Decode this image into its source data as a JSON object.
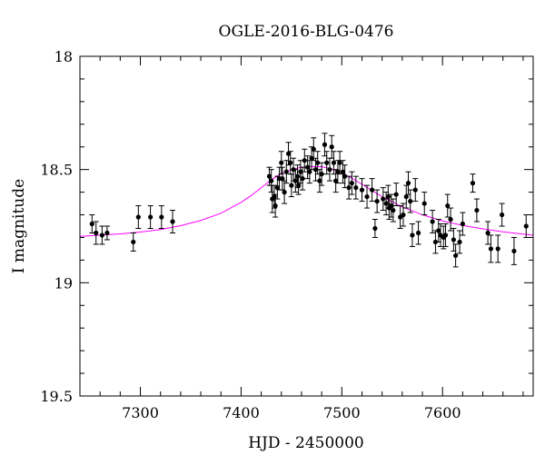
{
  "chart_data": {
    "type": "scatter",
    "title": "OGLE-2016-BLG-0476",
    "xlabel": "HJD - 2450000",
    "ylabel": "I magnitude",
    "xlim": [
      7240,
      7690
    ],
    "ylim": [
      19.5,
      18.0
    ],
    "y_inverted": true,
    "grid": false,
    "x_ticks": [
      7300,
      7400,
      7500,
      7600
    ],
    "x_tick_labels": [
      "7300",
      "7400",
      "7500",
      "7600"
    ],
    "y_ticks": [
      18.0,
      18.5,
      19.0,
      19.5
    ],
    "y_tick_labels": [
      "18",
      "18.5",
      "19",
      "19.5"
    ],
    "colors": {
      "points": "#000000",
      "model": "#ff00ff",
      "axes": "#000000"
    },
    "series": [
      {
        "kind": "points_with_errorbars",
        "points": [
          [
            7252,
            18.74,
            0.04
          ],
          [
            7256,
            18.78,
            0.05
          ],
          [
            7262,
            18.79,
            0.04
          ],
          [
            7267,
            18.78,
            0.03
          ],
          [
            7293,
            18.82,
            0.04
          ],
          [
            7298,
            18.71,
            0.05
          ],
          [
            7310,
            18.71,
            0.05
          ],
          [
            7321,
            18.71,
            0.05
          ],
          [
            7332,
            18.73,
            0.05
          ],
          [
            7428,
            18.53,
            0.04
          ],
          [
            7430,
            18.55,
            0.05
          ],
          [
            7431,
            18.63,
            0.06
          ],
          [
            7433,
            18.62,
            0.05
          ],
          [
            7434,
            18.66,
            0.05
          ],
          [
            7436,
            18.58,
            0.05
          ],
          [
            7438,
            18.54,
            0.05
          ],
          [
            7440,
            18.47,
            0.05
          ],
          [
            7441,
            18.54,
            0.05
          ],
          [
            7443,
            18.6,
            0.05
          ],
          [
            7445,
            18.51,
            0.05
          ],
          [
            7447,
            18.43,
            0.05
          ],
          [
            7449,
            18.47,
            0.05
          ],
          [
            7450,
            18.57,
            0.05
          ],
          [
            7452,
            18.5,
            0.05
          ],
          [
            7454,
            18.55,
            0.05
          ],
          [
            7456,
            18.53,
            0.05
          ],
          [
            7457,
            18.57,
            0.04
          ],
          [
            7459,
            18.51,
            0.05
          ],
          [
            7461,
            18.54,
            0.05
          ],
          [
            7463,
            18.46,
            0.05
          ],
          [
            7466,
            18.49,
            0.05
          ],
          [
            7468,
            18.51,
            0.05
          ],
          [
            7470,
            18.45,
            0.05
          ],
          [
            7472,
            18.41,
            0.05
          ],
          [
            7474,
            18.5,
            0.05
          ],
          [
            7476,
            18.47,
            0.05
          ],
          [
            7478,
            18.55,
            0.05
          ],
          [
            7480,
            18.52,
            0.05
          ],
          [
            7483,
            18.39,
            0.05
          ],
          [
            7485,
            18.47,
            0.05
          ],
          [
            7488,
            18.5,
            0.05
          ],
          [
            7490,
            18.4,
            0.05
          ],
          [
            7492,
            18.47,
            0.05
          ],
          [
            7494,
            18.55,
            0.05
          ],
          [
            7496,
            18.51,
            0.05
          ],
          [
            7498,
            18.47,
            0.05
          ],
          [
            7501,
            18.51,
            0.05
          ],
          [
            7503,
            18.53,
            0.05
          ],
          [
            7507,
            18.58,
            0.05
          ],
          [
            7510,
            18.56,
            0.05
          ],
          [
            7514,
            18.58,
            0.05
          ],
          [
            7520,
            18.59,
            0.05
          ],
          [
            7525,
            18.62,
            0.05
          ],
          [
            7530,
            18.59,
            0.05
          ],
          [
            7533,
            18.76,
            0.04
          ],
          [
            7535,
            18.64,
            0.05
          ],
          [
            7541,
            18.63,
            0.05
          ],
          [
            7544,
            18.65,
            0.05
          ],
          [
            7546,
            18.62,
            0.05
          ],
          [
            7547,
            18.67,
            0.05
          ],
          [
            7549,
            18.66,
            0.05
          ],
          [
            7551,
            18.68,
            0.05
          ],
          [
            7554,
            18.61,
            0.05
          ],
          [
            7558,
            18.71,
            0.05
          ],
          [
            7561,
            18.7,
            0.05
          ],
          [
            7564,
            18.62,
            0.05
          ],
          [
            7566,
            18.56,
            0.05
          ],
          [
            7568,
            18.64,
            0.05
          ],
          [
            7570,
            18.79,
            0.05
          ],
          [
            7573,
            18.59,
            0.05
          ],
          [
            7576,
            18.78,
            0.05
          ],
          [
            7582,
            18.65,
            0.05
          ],
          [
            7590,
            18.73,
            0.05
          ],
          [
            7593,
            18.82,
            0.05
          ],
          [
            7596,
            18.77,
            0.05
          ],
          [
            7598,
            18.79,
            0.05
          ],
          [
            7601,
            18.8,
            0.05
          ],
          [
            7603,
            18.79,
            0.05
          ],
          [
            7605,
            18.66,
            0.05
          ],
          [
            7608,
            18.72,
            0.05
          ],
          [
            7611,
            18.81,
            0.05
          ],
          [
            7613,
            18.88,
            0.05
          ],
          [
            7617,
            18.82,
            0.05
          ],
          [
            7620,
            18.74,
            0.05
          ],
          [
            7630,
            18.56,
            0.04
          ],
          [
            7634,
            18.68,
            0.05
          ],
          [
            7645,
            18.78,
            0.05
          ],
          [
            7648,
            18.85,
            0.06
          ],
          [
            7655,
            18.85,
            0.06
          ],
          [
            7659,
            18.7,
            0.05
          ],
          [
            7671,
            18.86,
            0.06
          ],
          [
            7683,
            18.75,
            0.05
          ]
        ]
      },
      {
        "kind": "model_curve",
        "x": [
          7240,
          7260,
          7280,
          7300,
          7320,
          7340,
          7360,
          7380,
          7400,
          7410,
          7420,
          7430,
          7440,
          7450,
          7460,
          7470,
          7480,
          7490,
          7500,
          7510,
          7520,
          7530,
          7540,
          7560,
          7580,
          7600,
          7620,
          7640,
          7660,
          7680,
          7690
        ],
        "y": [
          18.795,
          18.79,
          18.784,
          18.776,
          18.765,
          18.748,
          18.725,
          18.693,
          18.645,
          18.615,
          18.58,
          18.545,
          18.517,
          18.5,
          18.49,
          18.487,
          18.488,
          18.497,
          18.515,
          18.538,
          18.565,
          18.593,
          18.62,
          18.665,
          18.7,
          18.727,
          18.747,
          18.762,
          18.775,
          18.785,
          18.79
        ]
      }
    ]
  }
}
